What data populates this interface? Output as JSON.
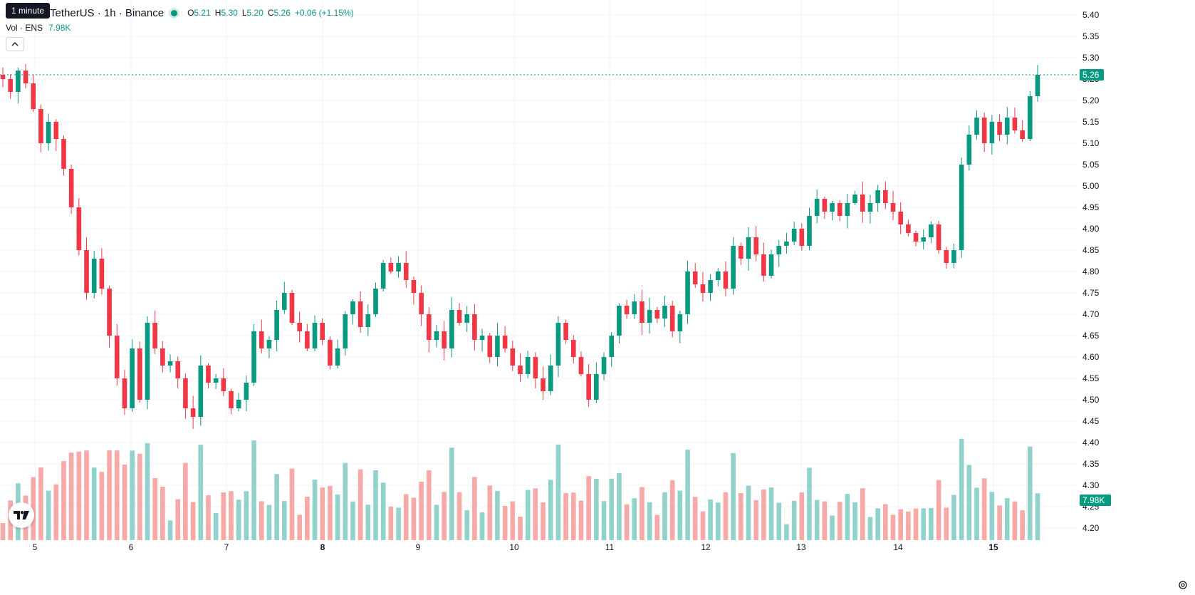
{
  "header": {
    "tooltip": "1 minute",
    "title": "TetherUS · 1h · Binance",
    "ohlc": [
      {
        "key": "O",
        "value": "5.21"
      },
      {
        "key": "H",
        "value": "5.30"
      },
      {
        "key": "L",
        "value": "5.20"
      },
      {
        "key": "C",
        "value": "5.26"
      }
    ],
    "change": "+0.06 (+1.15%)",
    "volume_label": "Vol · ENS",
    "volume_value": "7.98K"
  },
  "colors": {
    "up": "#089981",
    "down": "#f23645",
    "up_volume": "#92d2cc",
    "down_volume": "#f7a9a7",
    "grid": "#f0f3fa",
    "text": "#131722"
  },
  "price_axis": {
    "ticks": [
      "5.40",
      "5.35",
      "5.30",
      "5.25",
      "5.20",
      "5.15",
      "5.10",
      "5.05",
      "5.00",
      "4.95",
      "4.90",
      "4.85",
      "4.80",
      "4.75",
      "4.70",
      "4.65",
      "4.60",
      "4.55",
      "4.50",
      "4.45",
      "4.40",
      "4.35",
      "4.30",
      "4.25",
      "4.20"
    ],
    "current_price_label": "5.26",
    "current_volume_label": "7.98K"
  },
  "time_axis": {
    "labels": [
      {
        "text": "5",
        "bold": false
      },
      {
        "text": "6",
        "bold": false
      },
      {
        "text": "7",
        "bold": false
      },
      {
        "text": "8",
        "bold": true
      },
      {
        "text": "9",
        "bold": false
      },
      {
        "text": "10",
        "bold": false
      },
      {
        "text": "11",
        "bold": false
      },
      {
        "text": "12",
        "bold": false
      },
      {
        "text": "13",
        "bold": false
      },
      {
        "text": "14",
        "bold": false
      },
      {
        "text": "15",
        "bold": true
      }
    ]
  },
  "chart_data": {
    "type": "candlestick",
    "interval": "1h",
    "price_range": [
      4.18,
      5.42
    ],
    "current_price": 5.26,
    "candle_closes": [
      5.25,
      5.22,
      5.27,
      5.24,
      5.18,
      5.1,
      5.15,
      5.11,
      5.04,
      4.95,
      4.85,
      4.75,
      4.83,
      4.76,
      4.65,
      4.55,
      4.48,
      4.62,
      4.5,
      4.68,
      4.62,
      4.58,
      4.59,
      4.55,
      4.48,
      4.46,
      4.58,
      4.54,
      4.55,
      4.52,
      4.48,
      4.5,
      4.54,
      4.66,
      4.62,
      4.64,
      4.71,
      4.75,
      4.68,
      4.66,
      4.62,
      4.68,
      4.64,
      4.58,
      4.62,
      4.7,
      4.73,
      4.67,
      4.7,
      4.76,
      4.82,
      4.8,
      4.82,
      4.78,
      4.75,
      4.7,
      4.64,
      4.66,
      4.62,
      4.71,
      4.68,
      4.7,
      4.64,
      4.65,
      4.6,
      4.65,
      4.62,
      4.58,
      4.56,
      4.6,
      4.55,
      4.52,
      4.58,
      4.68,
      4.64,
      4.6,
      4.56,
      4.5,
      4.56,
      4.6,
      4.65,
      4.72,
      4.7,
      4.73,
      4.68,
      4.71,
      4.69,
      4.72,
      4.66,
      4.7,
      4.8,
      4.77,
      4.75,
      4.78,
      4.8,
      4.76,
      4.86,
      4.83,
      4.88,
      4.84,
      4.79,
      4.84,
      4.86,
      4.87,
      4.9,
      4.86,
      4.93,
      4.97,
      4.94,
      4.96,
      4.93,
      4.96,
      4.98,
      4.94,
      4.96,
      4.99,
      4.96,
      4.94,
      4.91,
      4.89,
      4.87,
      4.88,
      4.91,
      4.85,
      4.82,
      4.85,
      5.05,
      5.12,
      5.16,
      5.1,
      5.15,
      5.12,
      5.16,
      5.13,
      5.11,
      5.21,
      5.26
    ],
    "volume_peak": 7.98,
    "volume_unit": "K"
  }
}
